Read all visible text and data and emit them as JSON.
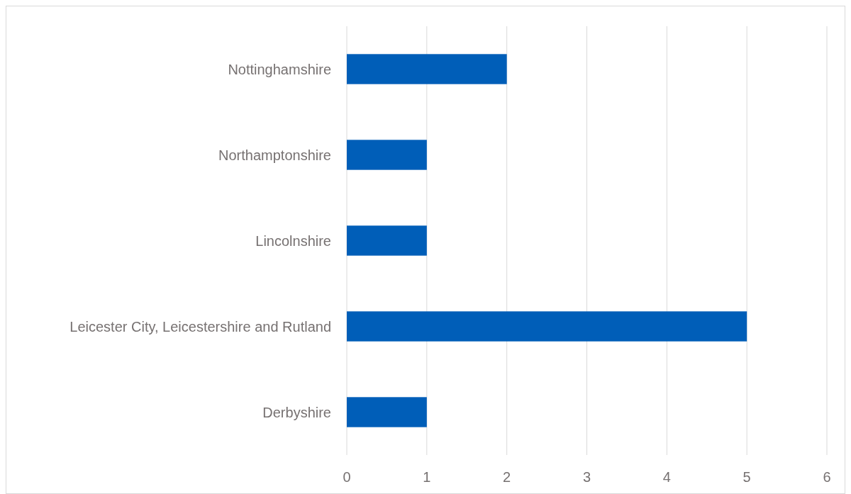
{
  "chart_data": {
    "type": "bar",
    "orientation": "horizontal",
    "categories": [
      "Nottinghamshire",
      "Northamptonshire",
      "Lincolnshire",
      "Leicester City, Leicestershire and Rutland",
      "Derbyshire"
    ],
    "values": [
      2,
      1,
      1,
      5,
      1
    ],
    "color": "#005eb8",
    "xlim": [
      0,
      6
    ],
    "xticks": [
      0,
      1,
      2,
      3,
      4,
      5,
      6
    ],
    "grid": "x"
  }
}
